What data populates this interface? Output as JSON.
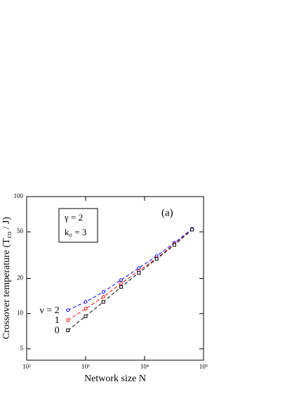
{
  "chart_data": {
    "type": "line",
    "x_label": "Network size  N",
    "y_label": "Crossover temperature  (T",
    "y_label_sub": "co",
    "y_label_end": " / J)",
    "annotations": [
      "γ = 2",
      "k₀ = 3"
    ],
    "panel_label": "(a)",
    "x": [
      500,
      1000,
      2000,
      4000,
      8000,
      16000,
      32000,
      64000
    ],
    "series": [
      {
        "name": "ν = 2",
        "color": "#0000ff",
        "marker": "circle",
        "values": [
          10.7,
          12.6,
          15.3,
          19.4,
          24.5,
          31,
          40.3,
          53
        ]
      },
      {
        "name": "1",
        "color": "#ff0000",
        "marker": "circle",
        "values": [
          8.8,
          11.0,
          13.9,
          18.1,
          23.2,
          29.7,
          39.2,
          52.3
        ]
      },
      {
        "name": "0",
        "color": "#000000",
        "marker": "square",
        "values": [
          7.2,
          9.5,
          12.6,
          16.9,
          22.3,
          29.3,
          38.6,
          52.3
        ]
      }
    ],
    "log_x": true,
    "log_y": true,
    "xlim": [
      100,
      100000
    ],
    "xticks": [
      {
        "value": 100,
        "label": "10²"
      },
      {
        "value": 1000,
        "label": "10³"
      },
      {
        "value": 10000,
        "label": "10⁴"
      },
      {
        "value": 100000,
        "label": "10⁵"
      }
    ],
    "ylim": [
      4,
      100
    ],
    "yticks": [
      5,
      10,
      20,
      50,
      100
    ]
  }
}
